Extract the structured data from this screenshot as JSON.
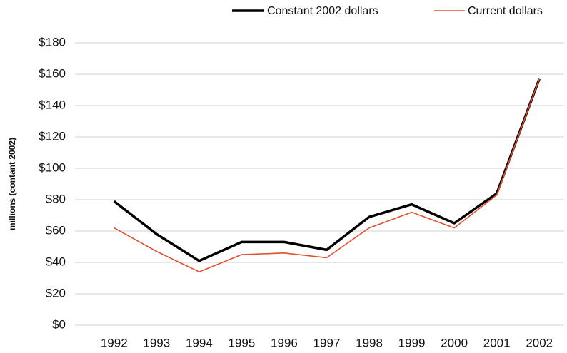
{
  "chart_data": {
    "type": "line",
    "y_label": "millions (contant 2002)",
    "categories": [
      "1992",
      "1993",
      "1994",
      "1995",
      "1996",
      "1997",
      "1998",
      "1999",
      "2000",
      "2001",
      "2002"
    ],
    "series": [
      {
        "name": "Constant 2002 dollars",
        "color": "#000000",
        "width": 3.5,
        "values": [
          79,
          58,
          41,
          53,
          53,
          48,
          69,
          77,
          65,
          84,
          157
        ]
      },
      {
        "name": "Current dollars",
        "color": "#e0502d",
        "width": 1.6,
        "values": [
          62,
          47,
          34,
          45,
          46,
          43,
          62,
          72,
          62,
          83,
          157
        ]
      }
    ],
    "ylim": [
      0,
      180
    ],
    "yticks": [
      {
        "value": 0,
        "label": "$0"
      },
      {
        "value": 20,
        "label": "$20"
      },
      {
        "value": 40,
        "label": "$40"
      },
      {
        "value": 60,
        "label": "$60"
      },
      {
        "value": 80,
        "label": "$80"
      },
      {
        "value": 100,
        "label": "$100"
      },
      {
        "value": 120,
        "label": "$120"
      },
      {
        "value": 140,
        "label": "$140"
      },
      {
        "value": 160,
        "label": "$160"
      },
      {
        "value": 180,
        "label": "$180"
      }
    ],
    "grid": true,
    "legend": "top-right"
  }
}
